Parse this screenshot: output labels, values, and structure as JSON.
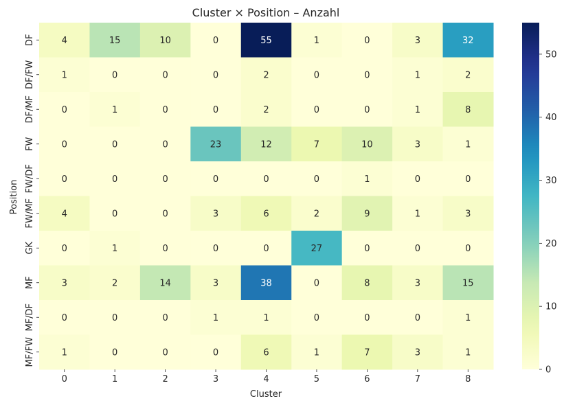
{
  "chart_data": {
    "type": "heatmap",
    "title": "Cluster × Position – Anzahl",
    "xlabel": "Cluster",
    "ylabel": "Position",
    "x": [
      "0",
      "1",
      "2",
      "3",
      "4",
      "5",
      "6",
      "7",
      "8"
    ],
    "y": [
      "DF",
      "DF/FW",
      "DF/MF",
      "FW",
      "FW/DF",
      "FW/MF",
      "GK",
      "MF",
      "MF/DF",
      "MF/FW"
    ],
    "values": [
      [
        4,
        15,
        10,
        0,
        55,
        1,
        0,
        3,
        32
      ],
      [
        1,
        0,
        0,
        0,
        2,
        0,
        0,
        1,
        2
      ],
      [
        0,
        1,
        0,
        0,
        2,
        0,
        0,
        1,
        8
      ],
      [
        0,
        0,
        0,
        23,
        12,
        7,
        10,
        3,
        1
      ],
      [
        0,
        0,
        0,
        0,
        0,
        0,
        1,
        0,
        0
      ],
      [
        4,
        0,
        0,
        3,
        6,
        2,
        9,
        1,
        3
      ],
      [
        0,
        1,
        0,
        0,
        0,
        27,
        0,
        0,
        0
      ],
      [
        3,
        2,
        14,
        3,
        38,
        0,
        8,
        3,
        15
      ],
      [
        0,
        0,
        0,
        1,
        1,
        0,
        0,
        0,
        1
      ],
      [
        1,
        0,
        0,
        0,
        6,
        1,
        7,
        3,
        1
      ]
    ],
    "colormap": "YlGnBu",
    "vmin": 0,
    "vmax": 55,
    "colorbar_ticks": [
      0,
      10,
      20,
      30,
      40,
      50
    ],
    "annotated": true
  }
}
